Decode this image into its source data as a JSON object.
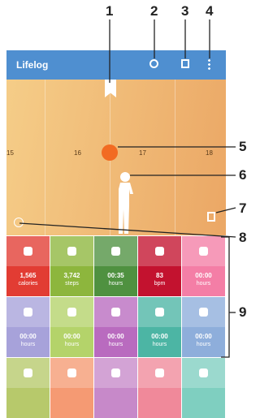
{
  "callouts": [
    "1",
    "2",
    "3",
    "4",
    "5",
    "6",
    "7",
    "8",
    "9"
  ],
  "app_bar": {
    "title": "Lifelog"
  },
  "timeline": {
    "hours": [
      "15",
      "16",
      "17",
      "18"
    ]
  },
  "tiles": [
    {
      "value": "1,565",
      "unit": "calories"
    },
    {
      "value": "3,742",
      "unit": "steps"
    },
    {
      "value": "00:35",
      "unit": "hours"
    },
    {
      "value": "83",
      "unit": "bpm"
    },
    {
      "value": "00:00",
      "unit": "hours"
    },
    {
      "value": "00:00",
      "unit": "hours"
    },
    {
      "value": "00:00",
      "unit": "hours"
    },
    {
      "value": "00:00",
      "unit": "hours"
    },
    {
      "value": "00:00",
      "unit": "hours"
    },
    {
      "value": "00:00",
      "unit": "hours"
    }
  ]
}
